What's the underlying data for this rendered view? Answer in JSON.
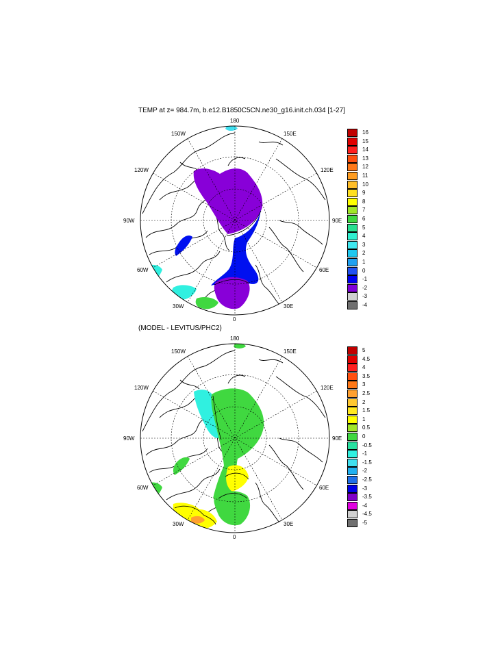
{
  "panel1": {
    "title": "TEMP at z= 984.7m, b.e12.B1850C5CN.ne30_g16.init.ch.034 [1-27]",
    "lon_labels": {
      "top": "180",
      "bottom": "0",
      "left": "90W",
      "right": "90E",
      "upper_left_a": "150W",
      "upper_left_b": "120W",
      "upper_right_a": "150E",
      "upper_right_b": "120E",
      "lower_left_a": "60W",
      "lower_left_b": "30W",
      "lower_right_a": "60E",
      "lower_right_b": "30E"
    },
    "colorbar": {
      "labels": [
        "16",
        "15",
        "14",
        "13",
        "12",
        "11",
        "10",
        "9",
        "8",
        "7",
        "6",
        "5",
        "4",
        "3",
        "2",
        "1",
        "0",
        "-1",
        "-2",
        "-3",
        "-4"
      ],
      "colors": [
        "#c00000",
        "#e00000",
        "#ff2020",
        "#ff5010",
        "#ff7818",
        "#ff9c20",
        "#ffbe28",
        "#ffe020",
        "#ffff00",
        "#a0e628",
        "#40d840",
        "#28e090",
        "#30f0d0",
        "#40e8f0",
        "#20c8f0",
        "#20a0f0",
        "#2050f0",
        "#0000f0",
        "#8000d8",
        "#d0d0d0",
        "#707070"
      ]
    }
  },
  "panel2": {
    "title": "(MODEL - LEVITUS/PHC2)",
    "lon_labels": {
      "top": "180",
      "bottom": "0",
      "left": "90W",
      "right": "90E",
      "upper_left_a": "150W",
      "upper_left_b": "120W",
      "upper_right_a": "150E",
      "upper_right_b": "120E",
      "lower_left_a": "60W",
      "lower_left_b": "30W",
      "lower_right_a": "60E",
      "lower_right_b": "30E"
    },
    "colorbar": {
      "labels": [
        "5",
        "4.5",
        "4",
        "3.5",
        "3",
        "2.5",
        "2",
        "1.5",
        "1",
        "0.5",
        "0",
        "-0.5",
        "-1",
        "-1.5",
        "-2",
        "-2.5",
        "-3",
        "-3.5",
        "-4",
        "-4.5",
        "-5"
      ],
      "colors": [
        "#c00000",
        "#e00000",
        "#ff2020",
        "#ff5010",
        "#ff7818",
        "#ffa030",
        "#ffc830",
        "#ffe820",
        "#ffff00",
        "#a0e628",
        "#40d840",
        "#28e0a0",
        "#30f0e0",
        "#40e0f0",
        "#20b0f0",
        "#2070e8",
        "#0000e8",
        "#8000c8",
        "#e000e0",
        "#d0d0d0",
        "#707070"
      ]
    }
  }
}
